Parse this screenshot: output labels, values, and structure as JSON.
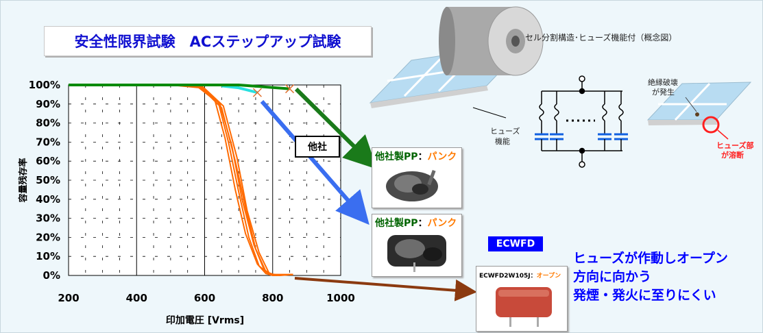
{
  "title": "安全性限界試験　ACステップアップ試験",
  "concept": {
    "title": "セル分割構造･ヒューズ機能付（概念図）",
    "fuse_label_1": "ヒューズ",
    "fuse_label_2": "機能",
    "breakdown_1": "絶縁破壊",
    "breakdown_2": "が発生",
    "melt_1": "ヒューズ部",
    "melt_2": "が溶断"
  },
  "other_box": "他社",
  "cards": {
    "a_maker": "他社製PP",
    "a_colon": "：",
    "a_state": "パンク",
    "b_maker": "他社製PP",
    "b_colon": "：",
    "b_state": "パンク",
    "c_maker": "ECWFD2W105J",
    "c_colon": "：",
    "c_state": "オープン"
  },
  "ecwfd_tag": "ECWFD",
  "message": {
    "line1": "ヒューズが作動しオープン",
    "line2": "方向に向かう",
    "line3": "発煙・発火に至りにくい"
  },
  "colors": {
    "ecwfd": "#ff6a00",
    "other_a": "#0a8a0a",
    "other_b": "#28e0e0",
    "arrow_green": "#1a7a1a",
    "arrow_blue": "#3a6ef0",
    "arrow_brown": "#8b3a10",
    "title_text": "#1010d0"
  },
  "chart_data": {
    "type": "line",
    "xlabel": "印加電圧 [Vrms]",
    "ylabel": "容量残存率",
    "xlim": [
      200,
      1000
    ],
    "ylim": [
      0,
      100
    ],
    "xticks": [
      200,
      400,
      600,
      800,
      1000
    ],
    "yticks": [
      0,
      10,
      20,
      30,
      40,
      50,
      60,
      70,
      80,
      90,
      100
    ],
    "x_tick_labels": [
      "200",
      "400",
      "600",
      "800",
      "1000"
    ],
    "y_tick_labels": [
      "0%",
      "10%",
      "20%",
      "30%",
      "40%",
      "50%",
      "60%",
      "70%",
      "80%",
      "90%",
      "100%"
    ],
    "grid": true,
    "series": [
      {
        "color": "#ff6a00",
        "points": [
          [
            200,
            100
          ],
          [
            500,
            100
          ],
          [
            580,
            99
          ],
          [
            630,
            92
          ],
          [
            660,
            72
          ],
          [
            690,
            45
          ],
          [
            720,
            22
          ],
          [
            755,
            6
          ],
          [
            780,
            1
          ],
          [
            800,
            0
          ],
          [
            860,
            0.5
          ]
        ]
      },
      {
        "color": "#ff6a00",
        "points": [
          [
            200,
            100
          ],
          [
            500,
            100
          ],
          [
            580,
            99.5
          ],
          [
            640,
            91
          ],
          [
            670,
            70
          ],
          [
            700,
            44
          ],
          [
            730,
            20
          ],
          [
            760,
            5
          ],
          [
            790,
            0.5
          ],
          [
            860,
            0.5
          ]
        ]
      },
      {
        "color": "#ff6a00",
        "points": [
          [
            200,
            100
          ],
          [
            500,
            100
          ],
          [
            590,
            99
          ],
          [
            645,
            90
          ],
          [
            680,
            68
          ],
          [
            710,
            40
          ],
          [
            745,
            16
          ],
          [
            775,
            3
          ],
          [
            800,
            0
          ],
          [
            860,
            0.5
          ]
        ]
      },
      {
        "color": "#ff6a00",
        "points": [
          [
            200,
            100
          ],
          [
            500,
            100
          ],
          [
            590,
            98.5
          ],
          [
            650,
            88
          ],
          [
            690,
            60
          ],
          [
            720,
            36
          ],
          [
            750,
            14
          ],
          [
            780,
            2
          ],
          [
            810,
            0
          ],
          [
            860,
            0.5
          ]
        ]
      },
      {
        "color": "#ff6a00",
        "points": [
          [
            200,
            100
          ],
          [
            500,
            100
          ],
          [
            595,
            99
          ],
          [
            655,
            89
          ],
          [
            695,
            62
          ],
          [
            725,
            34
          ],
          [
            760,
            12
          ],
          [
            790,
            1
          ],
          [
            820,
            0
          ],
          [
            860,
            0.5
          ]
        ]
      },
      {
        "color": "#28e0e0",
        "points": [
          [
            650,
            99.5
          ],
          [
            700,
            98.5
          ],
          [
            755,
            96
          ]
        ]
      },
      {
        "color": "#0a8a0a",
        "points": [
          [
            200,
            100
          ],
          [
            700,
            100
          ],
          [
            850,
            98
          ]
        ]
      }
    ],
    "markers": [
      {
        "x": 755,
        "y": 96
      },
      {
        "x": 850,
        "y": 98
      }
    ]
  }
}
